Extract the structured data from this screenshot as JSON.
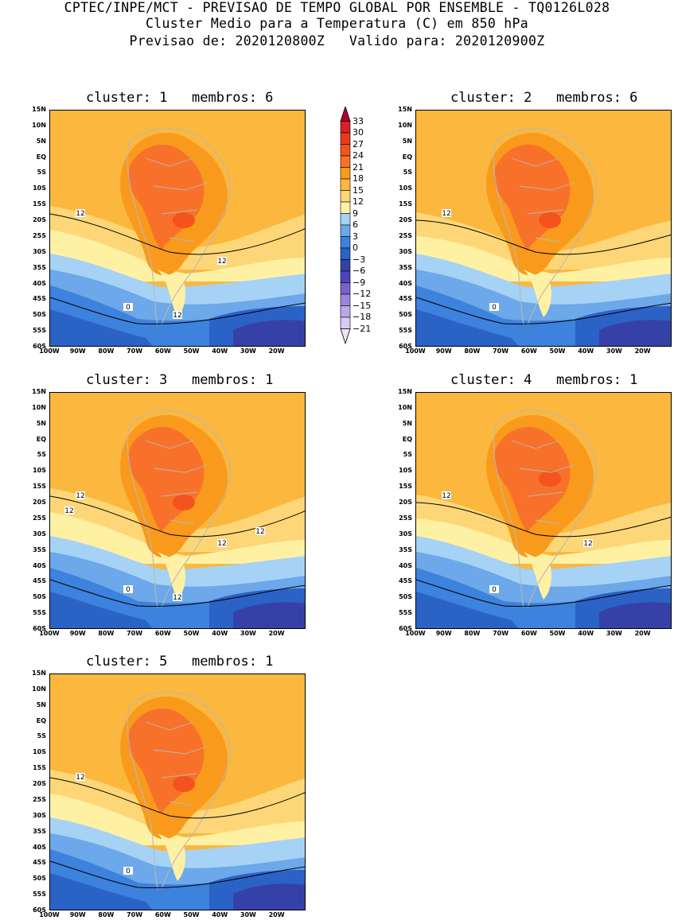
{
  "header": {
    "line1": "CPTEC/INPE/MCT - PREVISAO DE TEMPO GLOBAL POR ENSEMBLE - TQ0126L028",
    "line2": "Cluster Medio para a Temperatura (C) em 850 hPa",
    "line3": "Previsao de: 2020120800Z   Valido para: 2020120900Z"
  },
  "lat_labels": [
    "15N",
    "10N",
    "5N",
    "EQ",
    "5S",
    "10S",
    "15S",
    "20S",
    "25S",
    "30S",
    "35S",
    "40S",
    "45S",
    "50S",
    "55S",
    "60S"
  ],
  "lon_labels": [
    "100W",
    "90W",
    "80W",
    "70W",
    "60W",
    "50W",
    "40W",
    "30W",
    "20W"
  ],
  "colorbar": {
    "levels": [
      "33",
      "30",
      "27",
      "24",
      "21",
      "18",
      "15",
      "12",
      "9",
      "6",
      "3",
      "0",
      "-3",
      "-6",
      "-9",
      "-12",
      "-15",
      "-18",
      "-21"
    ],
    "colors": [
      "#b0002a",
      "#d8202a",
      "#ea3a1e",
      "#f4531d",
      "#f8712b",
      "#f99a1c",
      "#fbb73e",
      "#fdd777",
      "#fff1a4",
      "#a6d2f5",
      "#6ca8ea",
      "#3d82dc",
      "#2b62c5",
      "#3641a8",
      "#4f45b8",
      "#7a62c8",
      "#9b85d8",
      "#bba8e6",
      "#d6cbf1",
      "#eae3f8"
    ]
  },
  "panels": [
    {
      "title": "cluster: 1   membros: 6",
      "contour_labels": [
        "12",
        "12",
        "12",
        "0"
      ],
      "variant": 1
    },
    {
      "title": "cluster: 2   membros: 6",
      "contour_labels": [
        "12",
        "0"
      ],
      "variant": 2
    },
    {
      "title": "cluster: 3   membros: 1",
      "contour_labels": [
        "12",
        "12",
        "12",
        "12",
        "12",
        "0"
      ],
      "variant": 3
    },
    {
      "title": "cluster: 4   membros: 1",
      "contour_labels": [
        "12",
        "12",
        "0"
      ],
      "variant": 4
    },
    {
      "title": "cluster: 5   membros: 1",
      "contour_labels": [
        "12",
        "0"
      ],
      "variant": 5
    }
  ]
}
